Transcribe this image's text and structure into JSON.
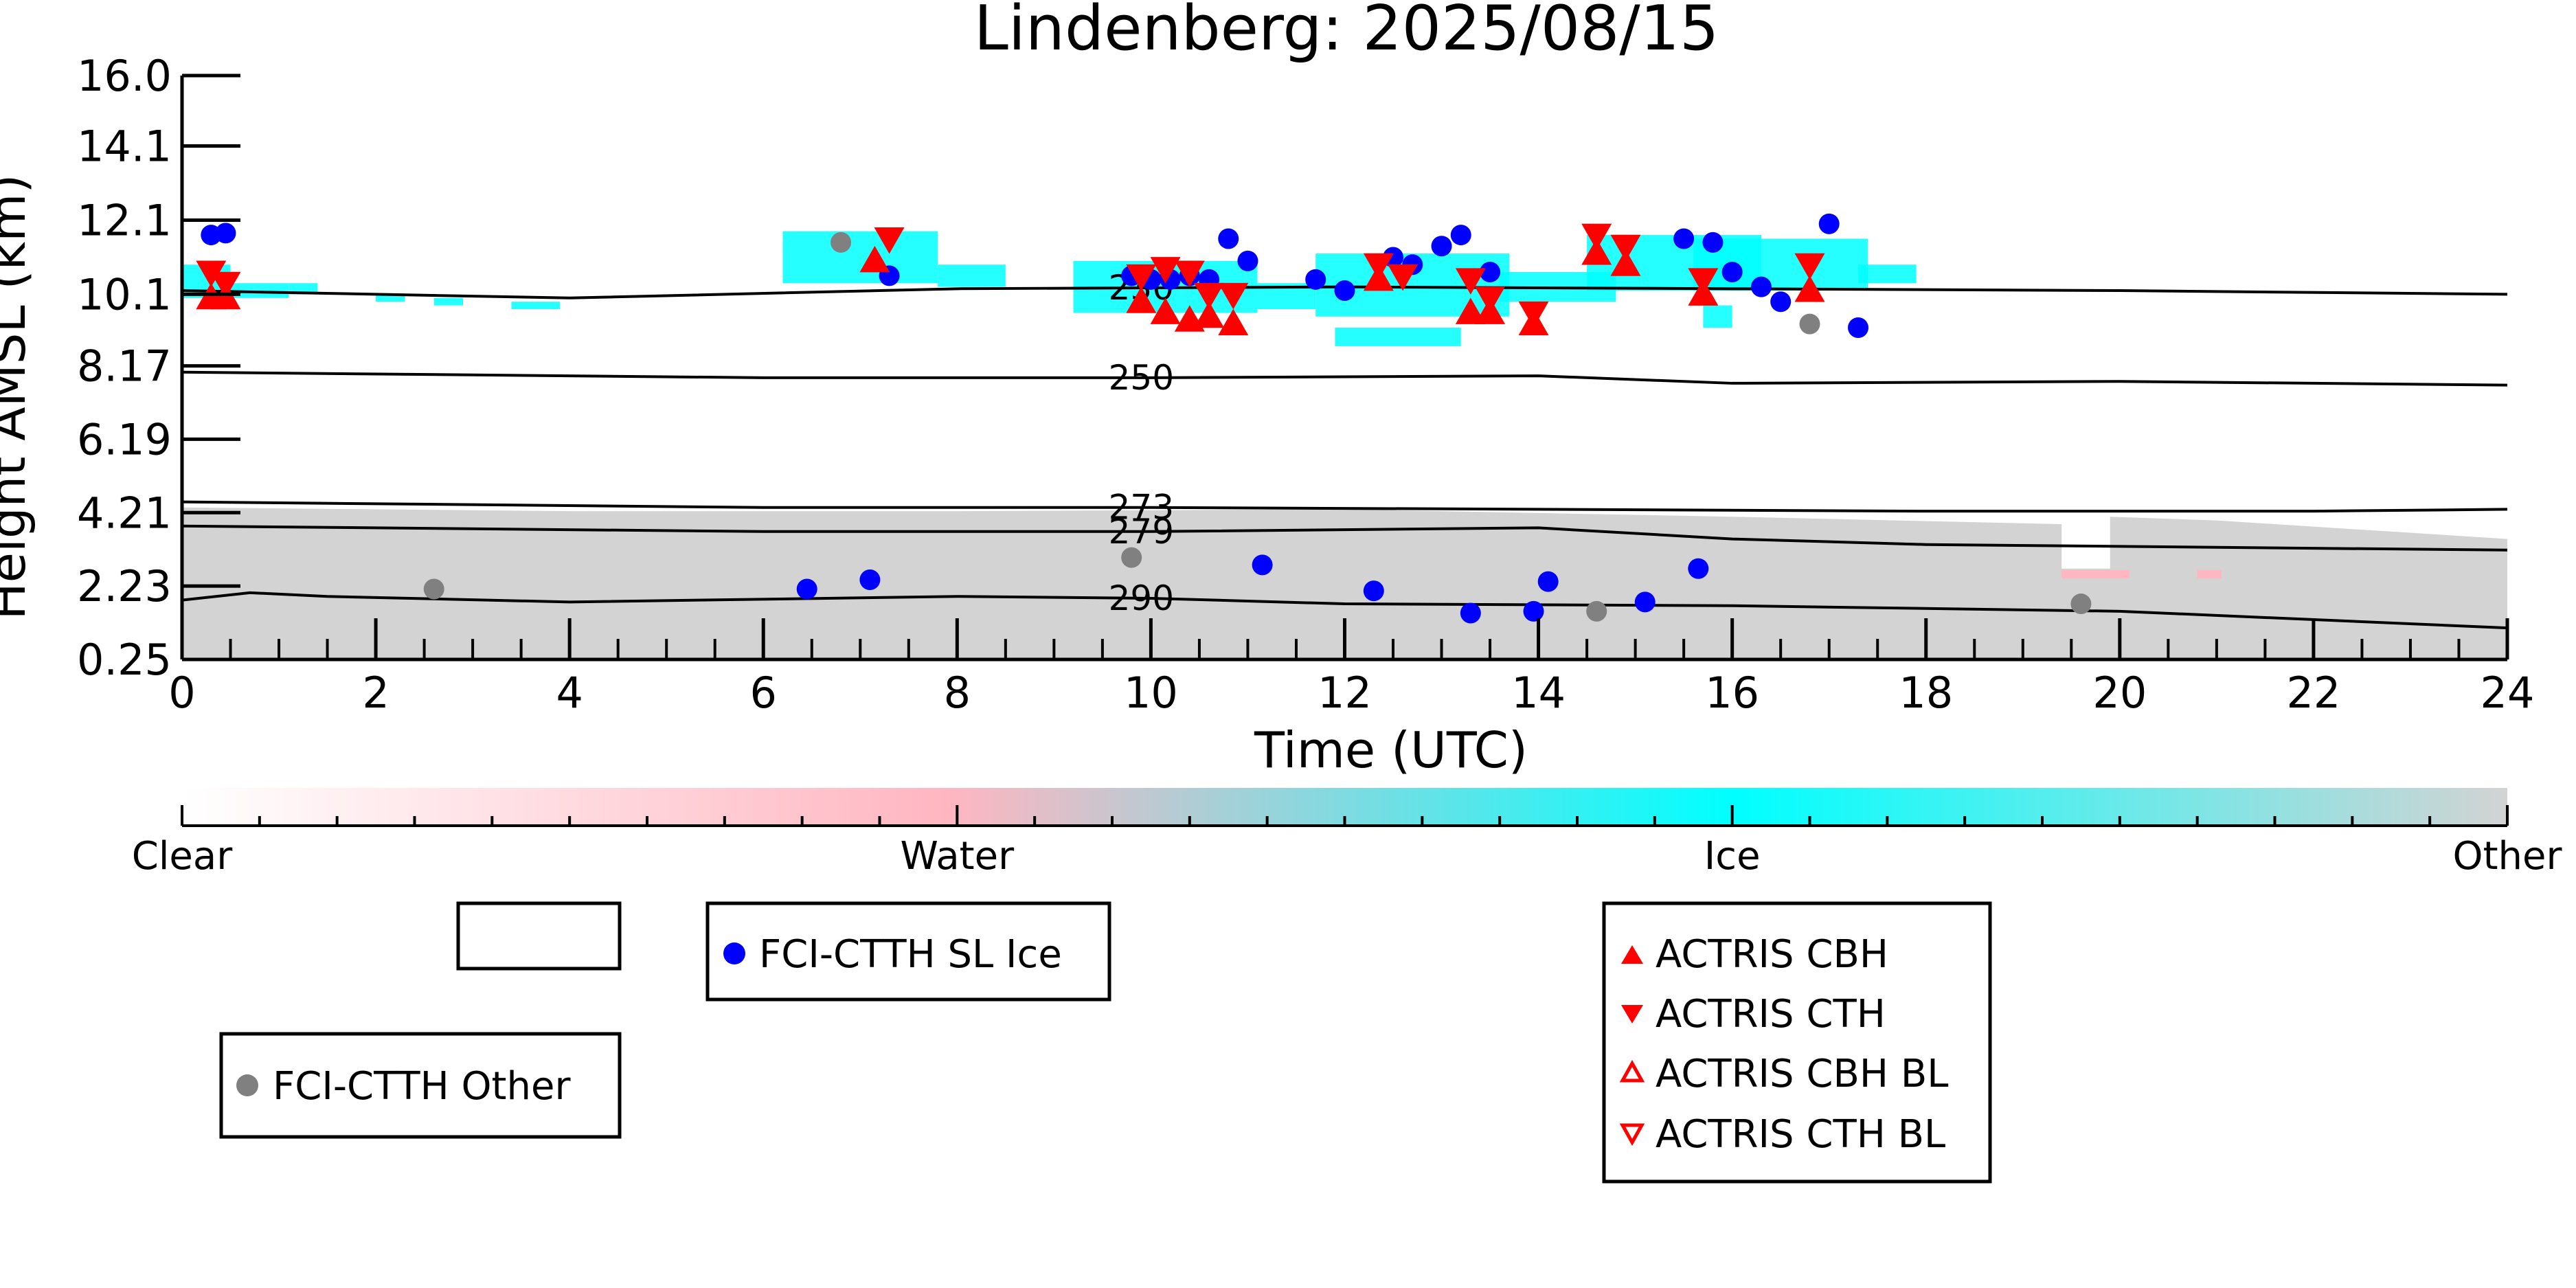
{
  "chart_data": {
    "type": "scatter",
    "title": "Lindenberg: 2025/08/15",
    "xlabel": "Time (UTC)",
    "ylabel": "Height AMSL (km)",
    "xlim": [
      0,
      24
    ],
    "ylim": [
      0.25,
      16.0
    ],
    "xticks": [
      "0",
      "2",
      "4",
      "6",
      "8",
      "10",
      "12",
      "14",
      "16",
      "18",
      "20",
      "22",
      "24"
    ],
    "yticks": [
      "0.25",
      "2.23",
      "4.21",
      "6.19",
      "8.17",
      "10.1",
      "12.1",
      "14.1",
      "16.0"
    ],
    "colorbar": {
      "labels": [
        "Clear",
        "Water",
        "Ice",
        "Other"
      ],
      "colors": [
        "#ffffff",
        "#ffb6c1",
        "#00ffff",
        "#d3d3d3"
      ]
    },
    "contours": [
      {
        "label": "230",
        "label_x": 9.9,
        "points": [
          [
            0,
            10.2
          ],
          [
            4,
            10.0
          ],
          [
            8,
            10.25
          ],
          [
            12,
            10.3
          ],
          [
            16,
            10.25
          ],
          [
            20,
            10.2
          ],
          [
            24,
            10.1
          ]
        ]
      },
      {
        "label": "250",
        "label_x": 9.9,
        "points": [
          [
            0,
            8.0
          ],
          [
            6,
            7.85
          ],
          [
            10,
            7.85
          ],
          [
            14,
            7.9
          ],
          [
            16,
            7.7
          ],
          [
            20,
            7.75
          ],
          [
            24,
            7.65
          ]
        ]
      },
      {
        "label": "273",
        "label_x": 9.9,
        "points": [
          [
            0,
            4.5
          ],
          [
            6,
            4.35
          ],
          [
            10,
            4.35
          ],
          [
            14,
            4.3
          ],
          [
            18,
            4.25
          ],
          [
            22,
            4.25
          ],
          [
            24,
            4.3
          ]
        ]
      },
      {
        "label": "279",
        "label_x": 9.9,
        "points": [
          [
            0,
            3.85
          ],
          [
            6,
            3.7
          ],
          [
            10,
            3.7
          ],
          [
            14,
            3.8
          ],
          [
            16,
            3.5
          ],
          [
            18,
            3.35
          ],
          [
            20,
            3.3
          ],
          [
            24,
            3.2
          ]
        ]
      },
      {
        "label": "290",
        "label_x": 9.9,
        "points": [
          [
            0,
            1.85
          ],
          [
            0.7,
            2.05
          ],
          [
            1.5,
            1.95
          ],
          [
            4,
            1.8
          ],
          [
            8,
            1.95
          ],
          [
            10,
            1.9
          ],
          [
            12,
            1.75
          ],
          [
            16,
            1.7
          ],
          [
            20,
            1.55
          ],
          [
            24,
            1.1
          ]
        ]
      }
    ],
    "series": [
      {
        "name": "FCI-CTTH SL Ice",
        "marker": "circle",
        "color": "#0000ff",
        "points": [
          [
            0.3,
            11.7
          ],
          [
            0.45,
            11.75
          ],
          [
            7.3,
            10.6
          ],
          [
            9.8,
            10.6
          ],
          [
            10.0,
            10.5
          ],
          [
            10.2,
            10.5
          ],
          [
            10.4,
            10.6
          ],
          [
            10.6,
            10.5
          ],
          [
            10.8,
            11.6
          ],
          [
            11.0,
            11.0
          ],
          [
            11.7,
            10.5
          ],
          [
            12.0,
            10.2
          ],
          [
            12.5,
            11.1
          ],
          [
            12.7,
            10.9
          ],
          [
            13.0,
            11.4
          ],
          [
            13.2,
            11.7
          ],
          [
            13.5,
            10.7
          ],
          [
            15.5,
            11.6
          ],
          [
            15.8,
            11.5
          ],
          [
            16.0,
            10.7
          ],
          [
            16.3,
            10.3
          ],
          [
            16.5,
            9.9
          ],
          [
            17.0,
            12.0
          ],
          [
            17.3,
            9.2
          ],
          [
            6.45,
            2.15
          ],
          [
            7.1,
            2.4
          ],
          [
            11.15,
            2.8
          ],
          [
            12.3,
            2.1
          ],
          [
            13.3,
            1.5
          ],
          [
            13.95,
            1.55
          ],
          [
            14.1,
            2.35
          ],
          [
            15.1,
            1.8
          ],
          [
            15.65,
            2.7
          ]
        ]
      },
      {
        "name": "FCI-CTTH Other",
        "marker": "circle",
        "color": "#808080",
        "points": [
          [
            6.8,
            11.5
          ],
          [
            16.8,
            9.3
          ],
          [
            2.6,
            2.15
          ],
          [
            9.8,
            3.0
          ],
          [
            14.6,
            1.55
          ],
          [
            19.6,
            1.75
          ]
        ]
      },
      {
        "name": "ACTRIS CBH",
        "marker": "triangle-up",
        "color": "#ff0000",
        "points": [
          [
            0.3,
            10.0
          ],
          [
            0.45,
            10.0
          ],
          [
            7.15,
            11.0
          ],
          [
            9.9,
            9.9
          ],
          [
            10.15,
            9.6
          ],
          [
            10.4,
            9.4
          ],
          [
            10.6,
            9.5
          ],
          [
            10.85,
            9.3
          ],
          [
            12.35,
            10.5
          ],
          [
            13.3,
            9.6
          ],
          [
            13.5,
            9.6
          ],
          [
            13.95,
            9.3
          ],
          [
            14.6,
            11.2
          ],
          [
            14.9,
            10.9
          ],
          [
            15.7,
            10.1
          ],
          [
            16.8,
            10.2
          ]
        ]
      },
      {
        "name": "ACTRIS CTH",
        "marker": "triangle-down",
        "color": "#ff0000",
        "points": [
          [
            0.3,
            10.7
          ],
          [
            0.45,
            10.4
          ],
          [
            7.3,
            11.6
          ],
          [
            9.9,
            10.6
          ],
          [
            10.15,
            10.8
          ],
          [
            10.4,
            10.7
          ],
          [
            10.6,
            10.1
          ],
          [
            10.85,
            10.1
          ],
          [
            12.35,
            10.9
          ],
          [
            12.6,
            10.6
          ],
          [
            13.3,
            10.5
          ],
          [
            13.5,
            10.0
          ],
          [
            13.95,
            9.6
          ],
          [
            14.6,
            11.7
          ],
          [
            14.9,
            11.4
          ],
          [
            15.7,
            10.5
          ],
          [
            16.8,
            10.9
          ]
        ]
      },
      {
        "name": "ACTRIS CBH BL",
        "marker": "triangle-up-open",
        "color": "#ff0000",
        "points": []
      },
      {
        "name": "ACTRIS CTH BL",
        "marker": "triangle-down-open",
        "color": "#ff0000",
        "points": []
      }
    ],
    "legend": {
      "box_circle": [
        "FCI-CTTH SL Ice"
      ],
      "box_other": [
        "FCI-CTTH Other"
      ],
      "box_actris": [
        "ACTRIS CBH",
        "ACTRIS CTH",
        "ACTRIS CBH BL",
        "ACTRIS CTH BL"
      ]
    }
  }
}
